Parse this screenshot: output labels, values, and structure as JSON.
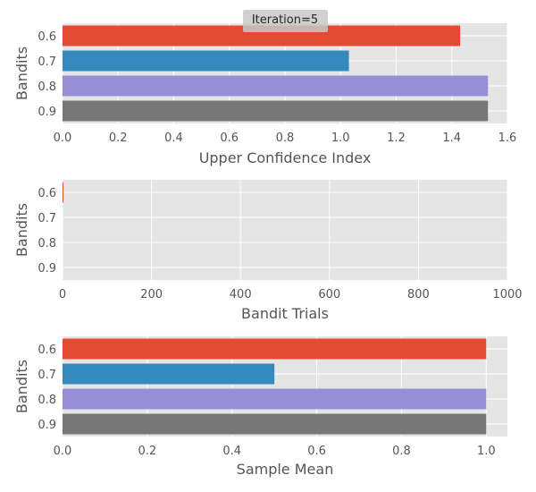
{
  "chart_data": [
    {
      "type": "bar",
      "orientation": "horizontal",
      "categories": [
        "0.6",
        "0.7",
        "0.8",
        "0.9"
      ],
      "values": [
        1.43,
        1.03,
        1.53,
        1.53
      ],
      "colors": [
        "#E24A33",
        "#348ABD",
        "#988ED5",
        "#777777"
      ],
      "xlabel": "Upper Confidence Index",
      "ylabel": "Bandits",
      "xlim": [
        0,
        1.6
      ],
      "xticks": [
        "0.0",
        "0.2",
        "0.4",
        "0.6",
        "0.8",
        "1.0",
        "1.2",
        "1.4",
        "1.6"
      ],
      "grid": true,
      "annotation": "Iteration=5"
    },
    {
      "type": "bar",
      "orientation": "horizontal",
      "categories": [
        "0.6",
        "0.7",
        "0.8",
        "0.9"
      ],
      "values": [
        2,
        0,
        0,
        0
      ],
      "colors": [
        "#E24A33",
        "#348ABD",
        "#988ED5",
        "#777777"
      ],
      "xlabel": "Bandit Trials",
      "ylabel": "Bandits",
      "xlim": [
        0,
        1000
      ],
      "xticks": [
        "0",
        "200",
        "400",
        "600",
        "800",
        "1000"
      ],
      "grid": true
    },
    {
      "type": "bar",
      "orientation": "horizontal",
      "categories": [
        "0.6",
        "0.7",
        "0.8",
        "0.9"
      ],
      "values": [
        1.0,
        0.5,
        1.0,
        1.0
      ],
      "colors": [
        "#E24A33",
        "#348ABD",
        "#988ED5",
        "#777777"
      ],
      "xlabel": "Sample Mean",
      "ylabel": "Bandits",
      "xlim": [
        0,
        1.05
      ],
      "xticks": [
        "0.0",
        "0.2",
        "0.4",
        "0.6",
        "0.8",
        "1.0"
      ],
      "grid": true
    }
  ]
}
